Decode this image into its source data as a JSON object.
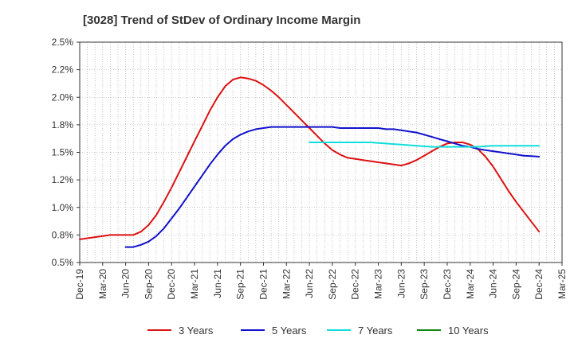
{
  "chart_data": {
    "type": "line",
    "title": "[3028]  Trend of StDev of Ordinary Income Margin",
    "xlabel": "",
    "ylabel": "",
    "x_ticks": [
      "Dec-19",
      "Mar-20",
      "Jun-20",
      "Sep-20",
      "Dec-20",
      "Mar-21",
      "Jun-21",
      "Sep-21",
      "Dec-21",
      "Mar-22",
      "Jun-22",
      "Sep-22",
      "Dec-22",
      "Mar-23",
      "Jun-23",
      "Sep-23",
      "Dec-23",
      "Mar-24",
      "Jun-24",
      "Sep-24",
      "Dec-24",
      "Mar-25"
    ],
    "y_ticks": [
      0.5,
      0.75,
      1.0,
      1.25,
      1.5,
      1.75,
      2.0,
      2.25,
      2.5
    ],
    "y_tick_labels": [
      "0.5%",
      "0.8%",
      "1.0%",
      "1.2%",
      "1.5%",
      "1.8%",
      "2.0%",
      "2.2%",
      "2.5%"
    ],
    "ylim": [
      0.5,
      2.5
    ],
    "grid": "dotted, both axes",
    "legend_position": "bottom",
    "series": [
      {
        "name": "3 Years",
        "color": "#dd1111",
        "x": [
          "Dec-19",
          "Jan-20",
          "Feb-20",
          "Mar-20",
          "Apr-20",
          "May-20",
          "Jun-20",
          "Jul-20",
          "Aug-20",
          "Sep-20",
          "Oct-20",
          "Nov-20",
          "Dec-20",
          "Jan-21",
          "Feb-21",
          "Mar-21",
          "Apr-21",
          "May-21",
          "Jun-21",
          "Jul-21",
          "Aug-21",
          "Sep-21",
          "Oct-21",
          "Nov-21",
          "Dec-21",
          "Jan-22",
          "Feb-22",
          "Mar-22",
          "Apr-22",
          "May-22",
          "Jun-22",
          "Jul-22",
          "Aug-22",
          "Sep-22",
          "Oct-22",
          "Nov-22",
          "Dec-22",
          "Jan-23",
          "Feb-23",
          "Mar-23",
          "Apr-23",
          "May-23",
          "Jun-23",
          "Jul-23",
          "Aug-23",
          "Sep-23",
          "Oct-23",
          "Nov-23",
          "Dec-23",
          "Jan-24",
          "Feb-24",
          "Mar-24",
          "Apr-24",
          "May-24",
          "Jun-24",
          "Jul-24",
          "Aug-24",
          "Sep-24",
          "Oct-24",
          "Nov-24",
          "Dec-24"
        ],
        "values": [
          0.71,
          0.72,
          0.73,
          0.74,
          0.75,
          0.75,
          0.75,
          0.75,
          0.78,
          0.84,
          0.93,
          1.05,
          1.18,
          1.32,
          1.46,
          1.6,
          1.74,
          1.88,
          2.0,
          2.1,
          2.16,
          2.18,
          2.17,
          2.15,
          2.11,
          2.06,
          2.0,
          1.93,
          1.86,
          1.79,
          1.72,
          1.65,
          1.58,
          1.52,
          1.48,
          1.45,
          1.44,
          1.43,
          1.42,
          1.41,
          1.4,
          1.39,
          1.38,
          1.4,
          1.43,
          1.47,
          1.51,
          1.55,
          1.58,
          1.59,
          1.59,
          1.57,
          1.53,
          1.46,
          1.37,
          1.26,
          1.15,
          1.05,
          0.96,
          0.87,
          0.78
        ]
      },
      {
        "name": "5 Years",
        "color": "#1111cc",
        "x": [
          "Jun-20",
          "Jul-20",
          "Aug-20",
          "Sep-20",
          "Oct-20",
          "Nov-20",
          "Dec-20",
          "Jan-21",
          "Feb-21",
          "Mar-21",
          "Apr-21",
          "May-21",
          "Jun-21",
          "Jul-21",
          "Aug-21",
          "Sep-21",
          "Oct-21",
          "Nov-21",
          "Dec-21",
          "Jan-22",
          "Feb-22",
          "Mar-22",
          "Apr-22",
          "May-22",
          "Jun-22",
          "Jul-22",
          "Aug-22",
          "Sep-22",
          "Oct-22",
          "Nov-22",
          "Dec-22",
          "Jan-23",
          "Feb-23",
          "Mar-23",
          "Apr-23",
          "May-23",
          "Jun-23",
          "Jul-23",
          "Aug-23",
          "Sep-23",
          "Oct-23",
          "Nov-23",
          "Dec-23",
          "Jan-24",
          "Feb-24",
          "Mar-24",
          "Apr-24",
          "May-24",
          "Jun-24",
          "Jul-24",
          "Aug-24",
          "Sep-24",
          "Oct-24",
          "Nov-24",
          "Dec-24"
        ],
        "values": [
          0.64,
          0.64,
          0.66,
          0.69,
          0.74,
          0.81,
          0.9,
          0.99,
          1.09,
          1.19,
          1.29,
          1.39,
          1.48,
          1.56,
          1.62,
          1.66,
          1.69,
          1.71,
          1.72,
          1.73,
          1.73,
          1.73,
          1.73,
          1.73,
          1.73,
          1.73,
          1.73,
          1.73,
          1.72,
          1.72,
          1.72,
          1.72,
          1.72,
          1.72,
          1.71,
          1.71,
          1.7,
          1.69,
          1.68,
          1.66,
          1.64,
          1.62,
          1.6,
          1.58,
          1.56,
          1.55,
          1.53,
          1.52,
          1.51,
          1.5,
          1.49,
          1.48,
          1.47,
          1.465,
          1.46
        ]
      },
      {
        "name": "7 Years",
        "color": "#11dddd",
        "x": [
          "Jun-22",
          "Jul-22",
          "Aug-22",
          "Sep-22",
          "Oct-22",
          "Nov-22",
          "Dec-22",
          "Jan-23",
          "Feb-23",
          "Mar-23",
          "Apr-23",
          "May-23",
          "Jun-23",
          "Jul-23",
          "Aug-23",
          "Sep-23",
          "Oct-23",
          "Nov-23",
          "Dec-23",
          "Jan-24",
          "Feb-24",
          "Mar-24",
          "Apr-24",
          "May-24",
          "Jun-24",
          "Jul-24",
          "Aug-24",
          "Sep-24",
          "Oct-24",
          "Nov-24",
          "Dec-24"
        ],
        "values": [
          1.59,
          1.59,
          1.59,
          1.59,
          1.59,
          1.59,
          1.59,
          1.59,
          1.59,
          1.585,
          1.58,
          1.575,
          1.57,
          1.565,
          1.56,
          1.555,
          1.55,
          1.55,
          1.55,
          1.55,
          1.55,
          1.55,
          1.55,
          1.555,
          1.56,
          1.56,
          1.56,
          1.56,
          1.56,
          1.56,
          1.56
        ]
      },
      {
        "name": "10 Years",
        "color": "#118811",
        "x": [],
        "values": []
      }
    ]
  }
}
